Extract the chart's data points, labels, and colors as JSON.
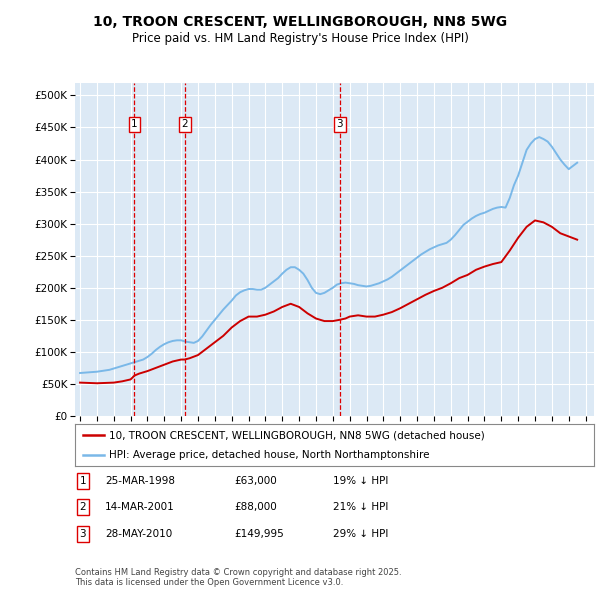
{
  "title_line1": "10, TROON CRESCENT, WELLINGBOROUGH, NN8 5WG",
  "title_line2": "Price paid vs. HM Land Registry's House Price Index (HPI)",
  "ylabel_ticks": [
    "£0",
    "£50K",
    "£100K",
    "£150K",
    "£200K",
    "£250K",
    "£300K",
    "£350K",
    "£400K",
    "£450K",
    "£500K"
  ],
  "ytick_values": [
    0,
    50000,
    100000,
    150000,
    200000,
    250000,
    300000,
    350000,
    400000,
    450000,
    500000
  ],
  "ylim": [
    0,
    520000
  ],
  "xlim_start": 1994.7,
  "xlim_end": 2025.5,
  "background_color": "#dce9f5",
  "plot_bg_color": "#dce9f5",
  "grid_color": "#ffffff",
  "red_line_color": "#cc0000",
  "blue_line_color": "#7ab8e8",
  "sale_markers": [
    {
      "x": 1998.23,
      "label": "1"
    },
    {
      "x": 2001.21,
      "label": "2"
    },
    {
      "x": 2010.41,
      "label": "3"
    }
  ],
  "legend_line1": "10, TROON CRESCENT, WELLINGBOROUGH, NN8 5WG (detached house)",
  "legend_line2": "HPI: Average price, detached house, North Northamptonshire",
  "table_rows": [
    {
      "num": "1",
      "date": "25-MAR-1998",
      "price": "£63,000",
      "hpi": "19% ↓ HPI"
    },
    {
      "num": "2",
      "date": "14-MAR-2001",
      "price": "£88,000",
      "hpi": "21% ↓ HPI"
    },
    {
      "num": "3",
      "date": "28-MAY-2010",
      "price": "£149,995",
      "hpi": "29% ↓ HPI"
    }
  ],
  "footnote": "Contains HM Land Registry data © Crown copyright and database right 2025.\nThis data is licensed under the Open Government Licence v3.0.",
  "hpi_data_years": [
    1995.0,
    1995.25,
    1995.5,
    1995.75,
    1996.0,
    1996.25,
    1996.5,
    1996.75,
    1997.0,
    1997.25,
    1997.5,
    1997.75,
    1998.0,
    1998.25,
    1998.5,
    1998.75,
    1999.0,
    1999.25,
    1999.5,
    1999.75,
    2000.0,
    2000.25,
    2000.5,
    2000.75,
    2001.0,
    2001.25,
    2001.5,
    2001.75,
    2002.0,
    2002.25,
    2002.5,
    2002.75,
    2003.0,
    2003.25,
    2003.5,
    2003.75,
    2004.0,
    2004.25,
    2004.5,
    2004.75,
    2005.0,
    2005.25,
    2005.5,
    2005.75,
    2006.0,
    2006.25,
    2006.5,
    2006.75,
    2007.0,
    2007.25,
    2007.5,
    2007.75,
    2008.0,
    2008.25,
    2008.5,
    2008.75,
    2009.0,
    2009.25,
    2009.5,
    2009.75,
    2010.0,
    2010.25,
    2010.5,
    2010.75,
    2011.0,
    2011.25,
    2011.5,
    2011.75,
    2012.0,
    2012.25,
    2012.5,
    2012.75,
    2013.0,
    2013.25,
    2013.5,
    2013.75,
    2014.0,
    2014.25,
    2014.5,
    2014.75,
    2015.0,
    2015.25,
    2015.5,
    2015.75,
    2016.0,
    2016.25,
    2016.5,
    2016.75,
    2017.0,
    2017.25,
    2017.5,
    2017.75,
    2018.0,
    2018.25,
    2018.5,
    2018.75,
    2019.0,
    2019.25,
    2019.5,
    2019.75,
    2020.0,
    2020.25,
    2020.5,
    2020.75,
    2021.0,
    2021.25,
    2021.5,
    2021.75,
    2022.0,
    2022.25,
    2022.5,
    2022.75,
    2023.0,
    2023.25,
    2023.5,
    2023.75,
    2024.0,
    2024.25,
    2024.5
  ],
  "hpi_data_values": [
    67000,
    67500,
    68000,
    68500,
    69000,
    70000,
    71000,
    72000,
    74000,
    76000,
    78000,
    80000,
    82000,
    84000,
    86000,
    88000,
    92000,
    97000,
    103000,
    108000,
    112000,
    115000,
    117000,
    118000,
    118000,
    116000,
    115000,
    114000,
    117000,
    124000,
    133000,
    142000,
    150000,
    158000,
    166000,
    173000,
    180000,
    188000,
    193000,
    196000,
    198000,
    198000,
    197000,
    197000,
    200000,
    205000,
    210000,
    215000,
    222000,
    228000,
    232000,
    232000,
    228000,
    222000,
    212000,
    200000,
    192000,
    190000,
    192000,
    196000,
    200000,
    205000,
    207000,
    208000,
    207000,
    206000,
    204000,
    203000,
    202000,
    203000,
    205000,
    207000,
    210000,
    213000,
    217000,
    222000,
    227000,
    232000,
    237000,
    242000,
    247000,
    252000,
    256000,
    260000,
    263000,
    266000,
    268000,
    270000,
    275000,
    282000,
    290000,
    298000,
    303000,
    308000,
    312000,
    315000,
    317000,
    320000,
    323000,
    325000,
    326000,
    325000,
    340000,
    360000,
    375000,
    395000,
    415000,
    425000,
    432000,
    435000,
    432000,
    428000,
    420000,
    410000,
    400000,
    392000,
    385000,
    390000,
    395000
  ],
  "price_data_years": [
    1995.0,
    1995.5,
    1996.0,
    1996.5,
    1997.0,
    1997.5,
    1998.0,
    1998.23,
    1998.5,
    1999.0,
    1999.5,
    2000.0,
    2000.5,
    2001.0,
    2001.21,
    2001.5,
    2002.0,
    2002.5,
    2003.0,
    2003.5,
    2004.0,
    2004.5,
    2005.0,
    2005.5,
    2006.0,
    2006.5,
    2007.0,
    2007.5,
    2008.0,
    2008.5,
    2009.0,
    2009.5,
    2010.0,
    2010.41,
    2010.75,
    2011.0,
    2011.5,
    2012.0,
    2012.5,
    2013.0,
    2013.5,
    2014.0,
    2014.5,
    2015.0,
    2015.5,
    2016.0,
    2016.5,
    2017.0,
    2017.5,
    2018.0,
    2018.5,
    2019.0,
    2019.5,
    2020.0,
    2020.5,
    2021.0,
    2021.5,
    2022.0,
    2022.5,
    2023.0,
    2023.5,
    2024.0,
    2024.5
  ],
  "price_data_values": [
    52000,
    51500,
    51000,
    51500,
    52000,
    54000,
    57000,
    63000,
    66000,
    70000,
    75000,
    80000,
    85000,
    88000,
    88000,
    90000,
    95000,
    105000,
    115000,
    125000,
    138000,
    148000,
    155000,
    155000,
    158000,
    163000,
    170000,
    175000,
    170000,
    160000,
    152000,
    148000,
    148000,
    149995,
    152000,
    155000,
    157000,
    155000,
    155000,
    158000,
    162000,
    168000,
    175000,
    182000,
    189000,
    195000,
    200000,
    207000,
    215000,
    220000,
    228000,
    233000,
    237000,
    240000,
    258000,
    278000,
    295000,
    305000,
    302000,
    295000,
    285000,
    280000,
    275000
  ]
}
